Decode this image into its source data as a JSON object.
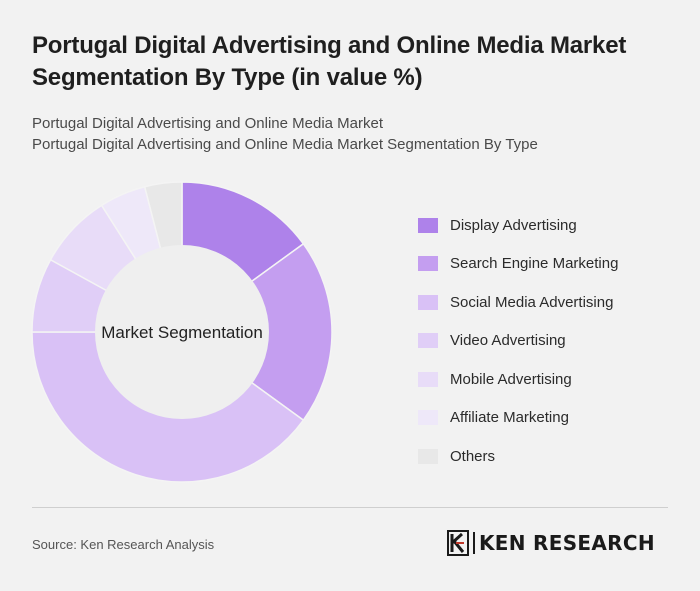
{
  "header": {
    "title": "Portugal Digital Advertising and Online Media Market Segmentation By Type (in value %)",
    "subtitle_line1": "Portugal Digital Advertising and Online Media Market",
    "subtitle_line2": "Portugal Digital Advertising and Online Media Market Segmentation By Type"
  },
  "chart_data": {
    "type": "pie",
    "center_label": "Market Segmentation",
    "categories": [
      "Display Advertising",
      "Search Engine Marketing",
      "Social Media Advertising",
      "Video Advertising",
      "Mobile Advertising",
      "Affiliate Marketing",
      "Others"
    ],
    "values": [
      15,
      20,
      40,
      8,
      8,
      5,
      4
    ],
    "colors": [
      "#ae82ea",
      "#c49ef0",
      "#d9c1f6",
      "#e0cef7",
      "#e8dcf8",
      "#eee8f9",
      "#e8e8e8"
    ],
    "legend_position": "right"
  },
  "footer": {
    "source": "Source: Ken Research Analysis",
    "logo_text": "KEN RESEARCH"
  }
}
